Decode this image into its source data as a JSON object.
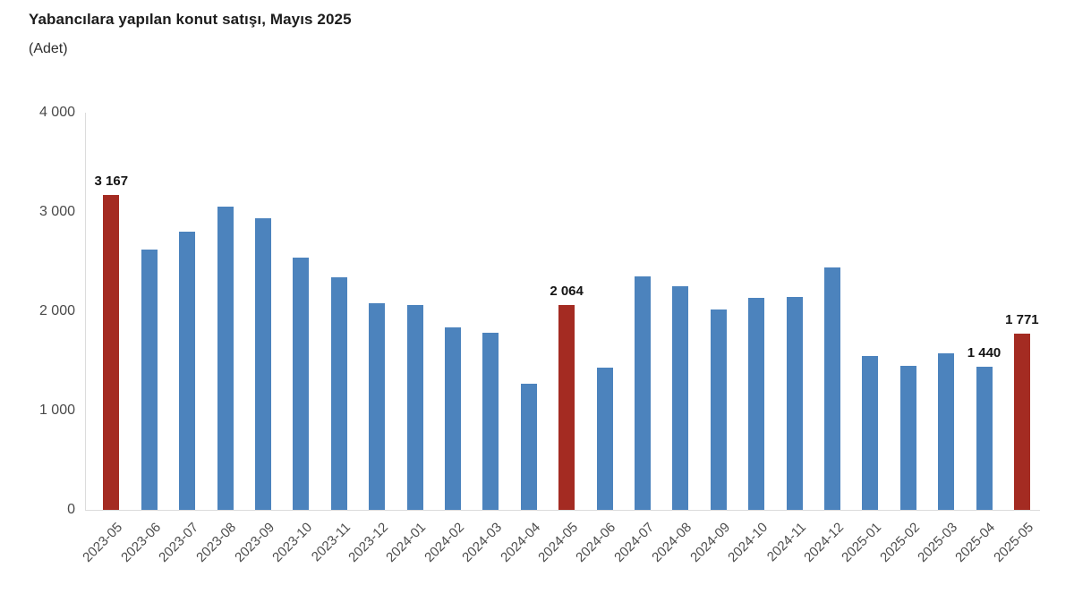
{
  "header": {
    "title": "Yabancılara yapılan konut satışı, Mayıs 2025",
    "subtitle": "(Adet)"
  },
  "chart_data": {
    "type": "bar",
    "title": "Yabancılara yapılan konut satışı, Mayıs 2025",
    "subtitle": "(Adet)",
    "xlabel": "",
    "ylabel": "Adet",
    "categories": [
      "2023-05",
      "2023-06",
      "2023-07",
      "2023-08",
      "2023-09",
      "2023-10",
      "2023-11",
      "2023-12",
      "2024-01",
      "2024-02",
      "2024-03",
      "2024-04",
      "2024-05",
      "2024-06",
      "2024-07",
      "2024-08",
      "2024-09",
      "2024-10",
      "2024-11",
      "2024-12",
      "2025-01",
      "2025-02",
      "2025-03",
      "2025-04",
      "2025-05"
    ],
    "values": [
      3167,
      2625,
      2801,
      3058,
      2938,
      2537,
      2341,
      2080,
      2060,
      1840,
      1780,
      1274,
      2064,
      1436,
      2351,
      2256,
      2022,
      2131,
      2147,
      2438,
      1546,
      1452,
      1576,
      1440,
      1771
    ],
    "highlight_months": [
      "2023-05",
      "2024-05",
      "2025-05"
    ],
    "point_labels": [
      {
        "month": "2023-05",
        "label": "3 167"
      },
      {
        "month": "2024-05",
        "label": "2 064"
      },
      {
        "month": "2025-04",
        "label": "1 440"
      },
      {
        "month": "2025-05",
        "label": "1 771"
      }
    ],
    "ylim": [
      0,
      4000
    ],
    "ytick_values": [
      0,
      1000,
      2000,
      3000,
      4000
    ],
    "ytick_labels": [
      "0",
      "1 000",
      "2 000",
      "3 000",
      "4 000"
    ],
    "grid": false,
    "legend": false,
    "colors": {
      "bar": "#4c83bd",
      "highlight": "#a42b22",
      "axis_line": "#dcdcdc",
      "tick_text": "#4a4a4a",
      "label_text": "#141414"
    }
  }
}
